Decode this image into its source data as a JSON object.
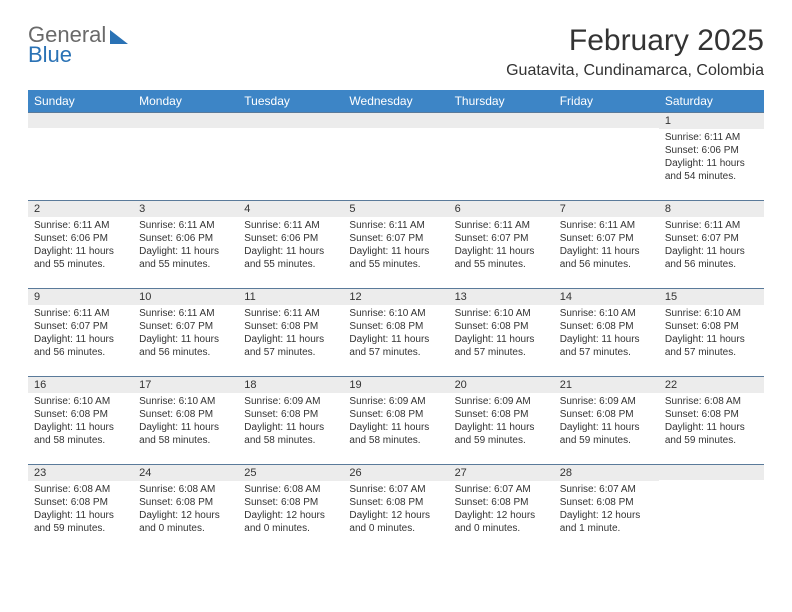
{
  "brand": {
    "word1": "General",
    "word2": "Blue"
  },
  "header": {
    "month_title": "February 2025",
    "location": "Guatavita, Cundinamarca, Colombia"
  },
  "colors": {
    "header_bg": "#3d85c6",
    "header_text": "#ffffff",
    "daynum_bg": "#ececec",
    "row_border": "#5a7a9a",
    "body_text": "#333333",
    "brand_gray": "#6a6a6a",
    "brand_blue": "#2a72b5",
    "page_bg": "#ffffff"
  },
  "typography": {
    "title_fontsize": 30,
    "location_fontsize": 16,
    "dayheader_fontsize": 12,
    "cell_fontsize": 10,
    "font_family": "Arial"
  },
  "calendar": {
    "day_headers": [
      "Sunday",
      "Monday",
      "Tuesday",
      "Wednesday",
      "Thursday",
      "Friday",
      "Saturday"
    ],
    "weeks": [
      [
        {
          "n": "",
          "sr": "",
          "ss": "",
          "dl": ""
        },
        {
          "n": "",
          "sr": "",
          "ss": "",
          "dl": ""
        },
        {
          "n": "",
          "sr": "",
          "ss": "",
          "dl": ""
        },
        {
          "n": "",
          "sr": "",
          "ss": "",
          "dl": ""
        },
        {
          "n": "",
          "sr": "",
          "ss": "",
          "dl": ""
        },
        {
          "n": "",
          "sr": "",
          "ss": "",
          "dl": ""
        },
        {
          "n": "1",
          "sr": "Sunrise: 6:11 AM",
          "ss": "Sunset: 6:06 PM",
          "dl": "Daylight: 11 hours and 54 minutes."
        }
      ],
      [
        {
          "n": "2",
          "sr": "Sunrise: 6:11 AM",
          "ss": "Sunset: 6:06 PM",
          "dl": "Daylight: 11 hours and 55 minutes."
        },
        {
          "n": "3",
          "sr": "Sunrise: 6:11 AM",
          "ss": "Sunset: 6:06 PM",
          "dl": "Daylight: 11 hours and 55 minutes."
        },
        {
          "n": "4",
          "sr": "Sunrise: 6:11 AM",
          "ss": "Sunset: 6:06 PM",
          "dl": "Daylight: 11 hours and 55 minutes."
        },
        {
          "n": "5",
          "sr": "Sunrise: 6:11 AM",
          "ss": "Sunset: 6:07 PM",
          "dl": "Daylight: 11 hours and 55 minutes."
        },
        {
          "n": "6",
          "sr": "Sunrise: 6:11 AM",
          "ss": "Sunset: 6:07 PM",
          "dl": "Daylight: 11 hours and 55 minutes."
        },
        {
          "n": "7",
          "sr": "Sunrise: 6:11 AM",
          "ss": "Sunset: 6:07 PM",
          "dl": "Daylight: 11 hours and 56 minutes."
        },
        {
          "n": "8",
          "sr": "Sunrise: 6:11 AM",
          "ss": "Sunset: 6:07 PM",
          "dl": "Daylight: 11 hours and 56 minutes."
        }
      ],
      [
        {
          "n": "9",
          "sr": "Sunrise: 6:11 AM",
          "ss": "Sunset: 6:07 PM",
          "dl": "Daylight: 11 hours and 56 minutes."
        },
        {
          "n": "10",
          "sr": "Sunrise: 6:11 AM",
          "ss": "Sunset: 6:07 PM",
          "dl": "Daylight: 11 hours and 56 minutes."
        },
        {
          "n": "11",
          "sr": "Sunrise: 6:11 AM",
          "ss": "Sunset: 6:08 PM",
          "dl": "Daylight: 11 hours and 57 minutes."
        },
        {
          "n": "12",
          "sr": "Sunrise: 6:10 AM",
          "ss": "Sunset: 6:08 PM",
          "dl": "Daylight: 11 hours and 57 minutes."
        },
        {
          "n": "13",
          "sr": "Sunrise: 6:10 AM",
          "ss": "Sunset: 6:08 PM",
          "dl": "Daylight: 11 hours and 57 minutes."
        },
        {
          "n": "14",
          "sr": "Sunrise: 6:10 AM",
          "ss": "Sunset: 6:08 PM",
          "dl": "Daylight: 11 hours and 57 minutes."
        },
        {
          "n": "15",
          "sr": "Sunrise: 6:10 AM",
          "ss": "Sunset: 6:08 PM",
          "dl": "Daylight: 11 hours and 57 minutes."
        }
      ],
      [
        {
          "n": "16",
          "sr": "Sunrise: 6:10 AM",
          "ss": "Sunset: 6:08 PM",
          "dl": "Daylight: 11 hours and 58 minutes."
        },
        {
          "n": "17",
          "sr": "Sunrise: 6:10 AM",
          "ss": "Sunset: 6:08 PM",
          "dl": "Daylight: 11 hours and 58 minutes."
        },
        {
          "n": "18",
          "sr": "Sunrise: 6:09 AM",
          "ss": "Sunset: 6:08 PM",
          "dl": "Daylight: 11 hours and 58 minutes."
        },
        {
          "n": "19",
          "sr": "Sunrise: 6:09 AM",
          "ss": "Sunset: 6:08 PM",
          "dl": "Daylight: 11 hours and 58 minutes."
        },
        {
          "n": "20",
          "sr": "Sunrise: 6:09 AM",
          "ss": "Sunset: 6:08 PM",
          "dl": "Daylight: 11 hours and 59 minutes."
        },
        {
          "n": "21",
          "sr": "Sunrise: 6:09 AM",
          "ss": "Sunset: 6:08 PM",
          "dl": "Daylight: 11 hours and 59 minutes."
        },
        {
          "n": "22",
          "sr": "Sunrise: 6:08 AM",
          "ss": "Sunset: 6:08 PM",
          "dl": "Daylight: 11 hours and 59 minutes."
        }
      ],
      [
        {
          "n": "23",
          "sr": "Sunrise: 6:08 AM",
          "ss": "Sunset: 6:08 PM",
          "dl": "Daylight: 11 hours and 59 minutes."
        },
        {
          "n": "24",
          "sr": "Sunrise: 6:08 AM",
          "ss": "Sunset: 6:08 PM",
          "dl": "Daylight: 12 hours and 0 minutes."
        },
        {
          "n": "25",
          "sr": "Sunrise: 6:08 AM",
          "ss": "Sunset: 6:08 PM",
          "dl": "Daylight: 12 hours and 0 minutes."
        },
        {
          "n": "26",
          "sr": "Sunrise: 6:07 AM",
          "ss": "Sunset: 6:08 PM",
          "dl": "Daylight: 12 hours and 0 minutes."
        },
        {
          "n": "27",
          "sr": "Sunrise: 6:07 AM",
          "ss": "Sunset: 6:08 PM",
          "dl": "Daylight: 12 hours and 0 minutes."
        },
        {
          "n": "28",
          "sr": "Sunrise: 6:07 AM",
          "ss": "Sunset: 6:08 PM",
          "dl": "Daylight: 12 hours and 1 minute."
        },
        {
          "n": "",
          "sr": "",
          "ss": "",
          "dl": ""
        }
      ]
    ]
  }
}
